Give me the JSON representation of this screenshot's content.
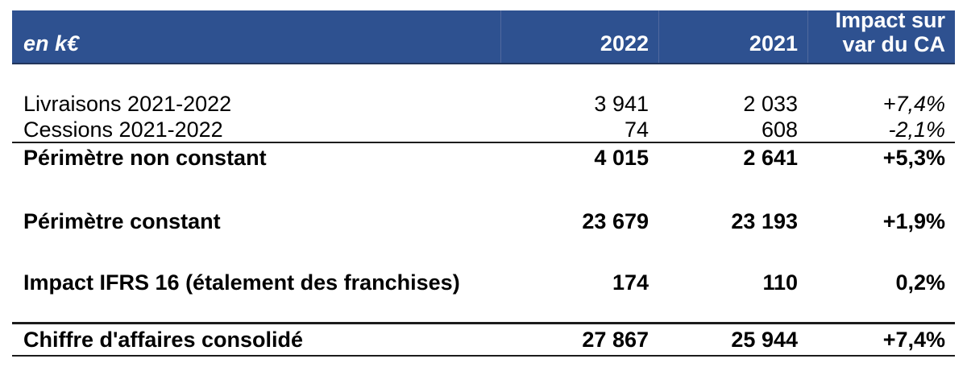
{
  "colors": {
    "header_bg": "#2e5190",
    "header_separator": "#51699e",
    "header_bottom_edge": "#22365c",
    "header_text": "#ffffff",
    "rule": "#1c1c1c",
    "text": "#000000"
  },
  "table": {
    "header": {
      "unit_label": "en k€",
      "col_2022": "2022",
      "col_2021": "2021",
      "impact_line1": "Impact sur",
      "impact_line2": "var du CA"
    },
    "rows": [
      {
        "label": "Livraisons 2021-2022",
        "y2022": "3 941",
        "y2021": "2 033",
        "impact": "+7,4%"
      },
      {
        "label": "Cessions 2021-2022",
        "y2022": "74",
        "y2021": "608",
        "impact": "-2,1%"
      },
      {
        "label": "Périmètre non constant",
        "y2022": "4 015",
        "y2021": "2 641",
        "impact": "+5,3%"
      },
      {
        "label": "Périmètre constant",
        "y2022": "23 679",
        "y2021": "23 193",
        "impact": "+1,9%"
      },
      {
        "label": "Impact IFRS 16 (étalement des franchises)",
        "y2022": "174",
        "y2021": "110",
        "impact": "0,2%"
      },
      {
        "label": "Chiffre d'affaires consolidé",
        "y2022": "27 867",
        "y2021": "25 944",
        "impact": "+7,4%"
      }
    ]
  }
}
